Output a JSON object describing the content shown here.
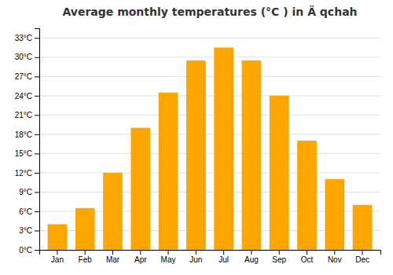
{
  "chart_data": {
    "type": "bar",
    "title": "Average monthly temperatures (°C ) in Ä qchah",
    "categories": [
      "Jan",
      "Feb",
      "Mar",
      "Apr",
      "May",
      "Jun",
      "Jul",
      "Aug",
      "Sep",
      "Oct",
      "Nov",
      "Dec"
    ],
    "values": [
      4,
      6.5,
      12,
      19,
      24.5,
      29.5,
      31.5,
      29.5,
      24,
      17,
      11,
      7
    ],
    "color": "#FFA500",
    "ylim": [
      0,
      34.5
    ],
    "yticks": [
      {
        "value": 0,
        "label": "0°C"
      },
      {
        "value": 3,
        "label": "3°C"
      },
      {
        "value": 6,
        "label": "6°C"
      },
      {
        "value": 9,
        "label": "9°C"
      },
      {
        "value": 12,
        "label": "12°C"
      },
      {
        "value": 15,
        "label": "15°C"
      },
      {
        "value": 18,
        "label": "18°C"
      },
      {
        "value": 21,
        "label": "21°C"
      },
      {
        "value": 24,
        "label": "24°C"
      },
      {
        "value": 27,
        "label": "27°C"
      },
      {
        "value": 30,
        "label": "30°C"
      },
      {
        "value": 33,
        "label": "33°C"
      }
    ],
    "grid": true
  }
}
